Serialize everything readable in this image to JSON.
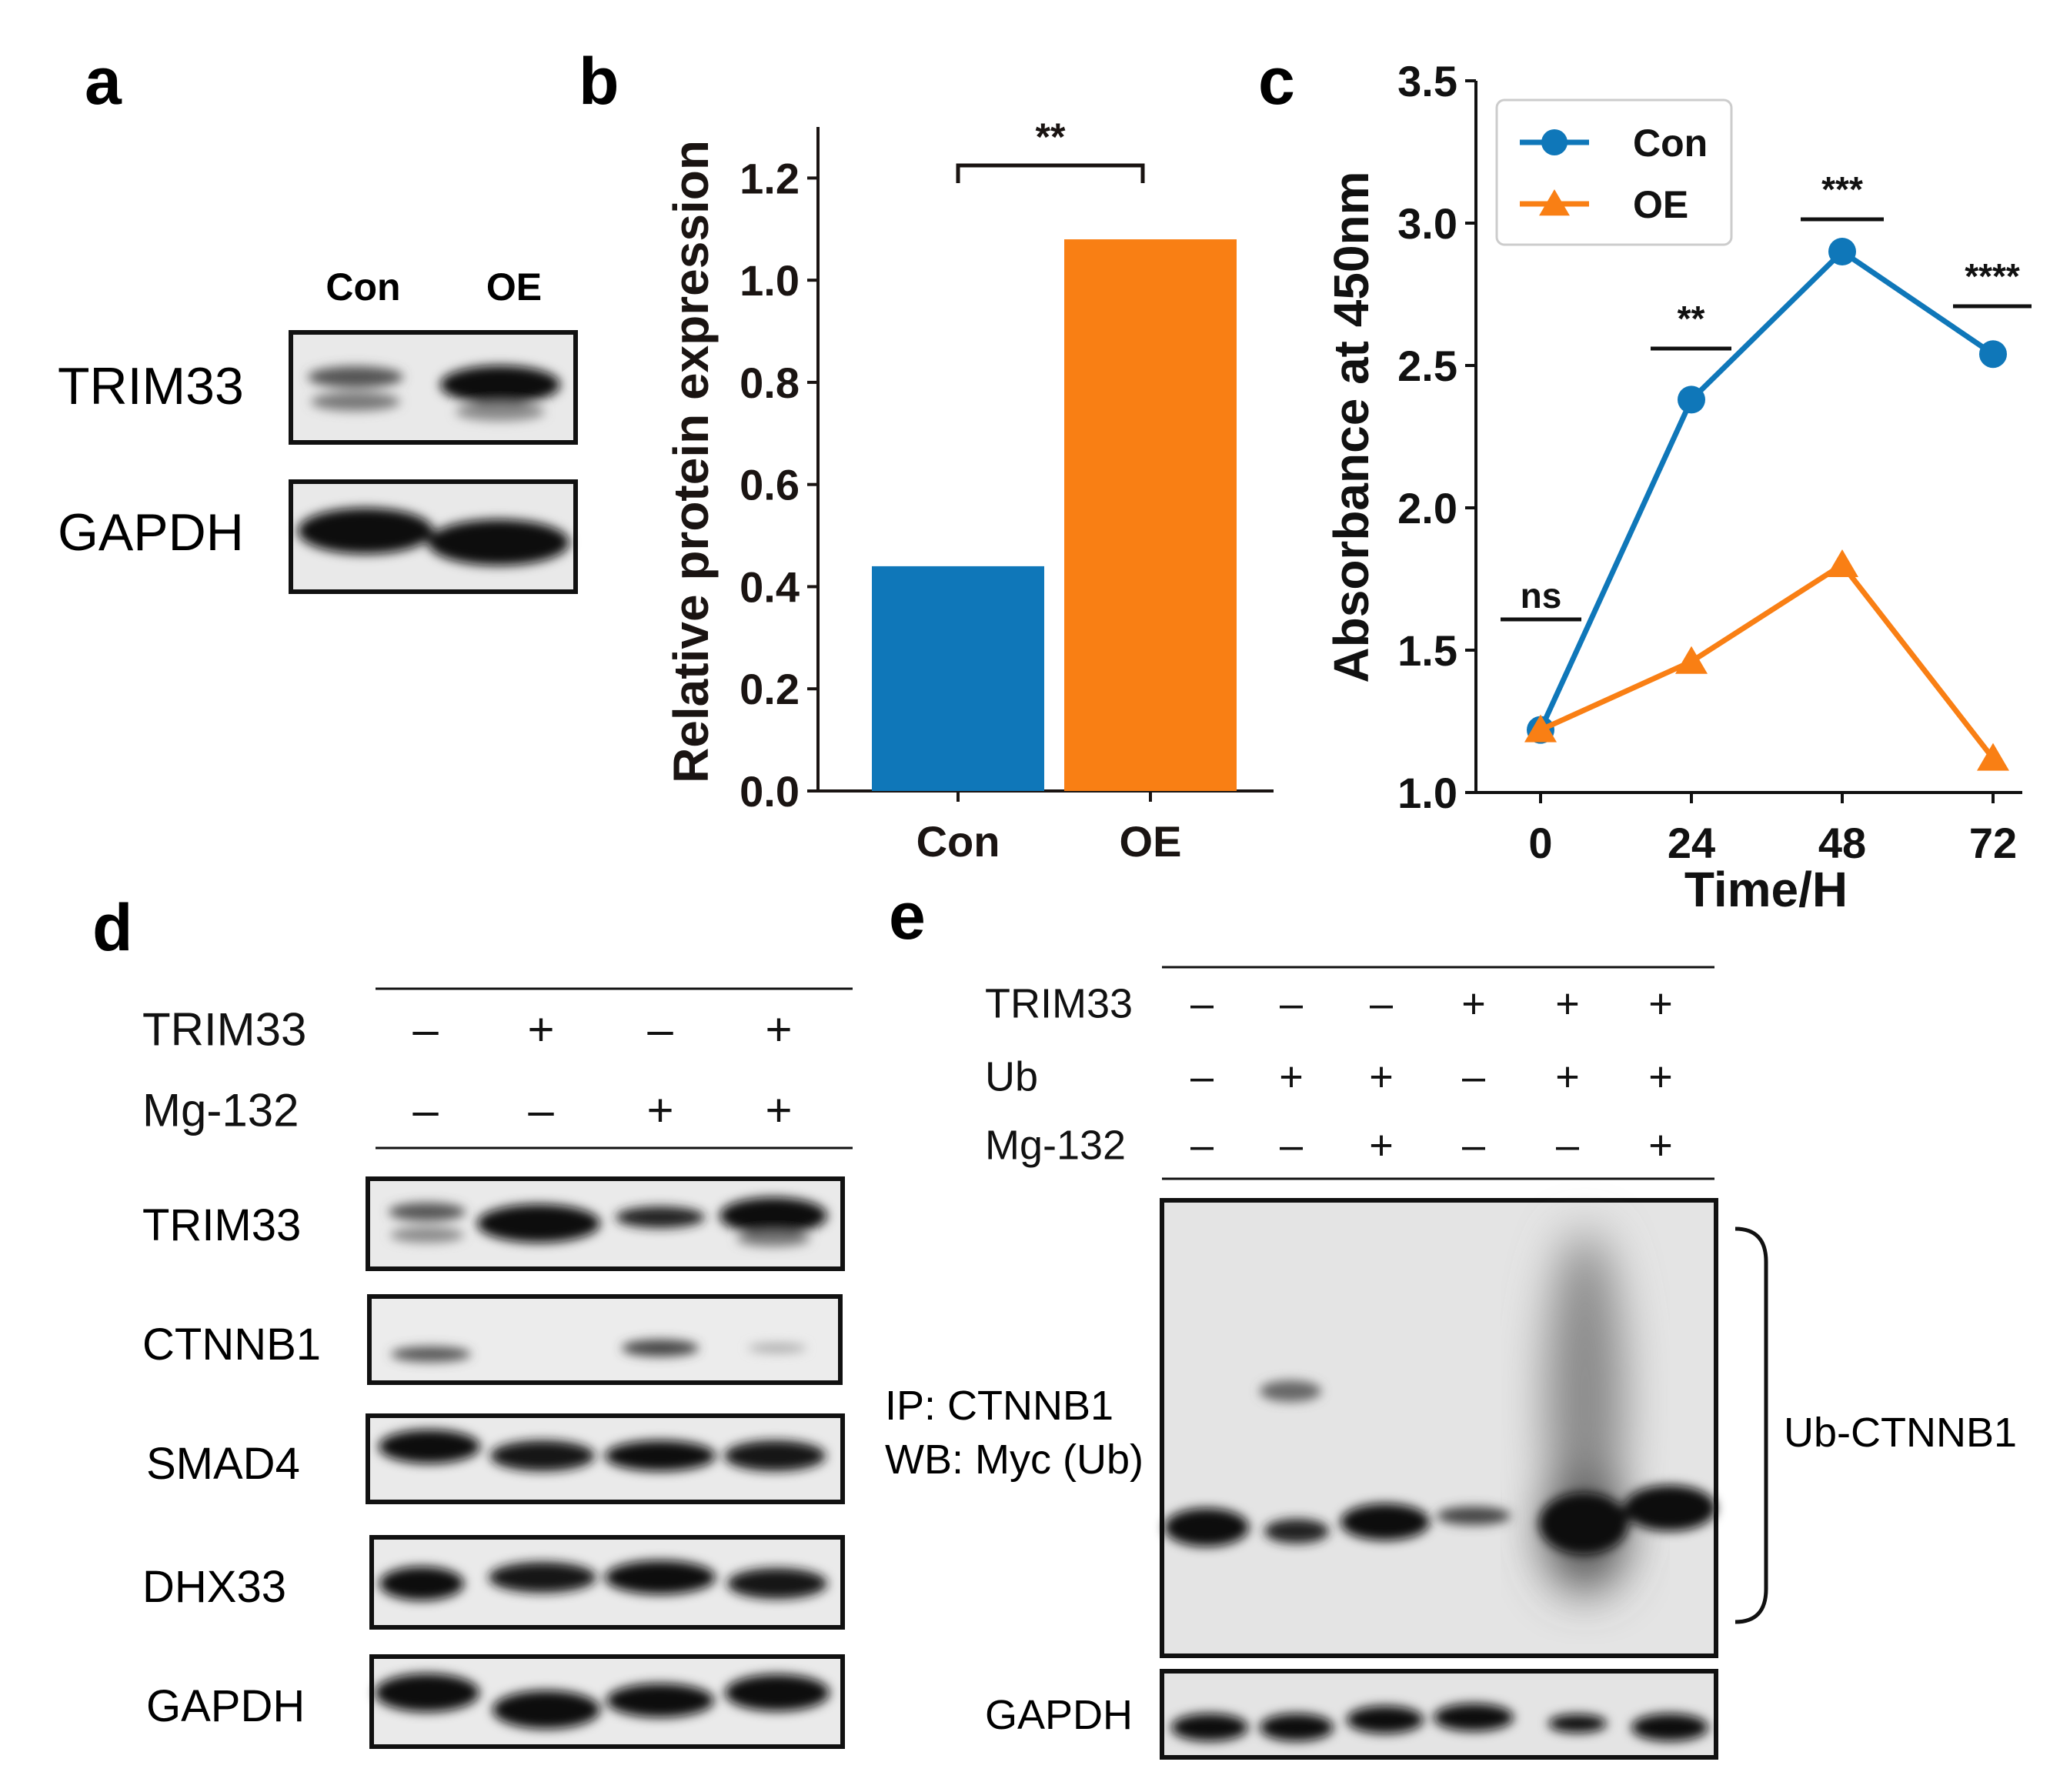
{
  "panel_letters": {
    "a": "a",
    "b": "b",
    "c": "c",
    "d": "d",
    "e": "e"
  },
  "panel_a": {
    "lanes": [
      "Con",
      "OE"
    ],
    "rows": [
      "TRIM33",
      "GAPDH"
    ]
  },
  "panel_d": {
    "conditions": [
      {
        "label": "TRIM33",
        "signs": [
          "–",
          "+",
          "–",
          "+"
        ]
      },
      {
        "label": "Mg-132",
        "signs": [
          "–",
          "–",
          "+",
          "+"
        ]
      }
    ],
    "blots": [
      "TRIM33",
      "CTNNB1",
      "SMAD4",
      "DHX33",
      "GAPDH"
    ]
  },
  "panel_e": {
    "conditions": [
      {
        "label": "TRIM33",
        "signs": [
          "–",
          "–",
          "–",
          "+",
          "+",
          "+"
        ]
      },
      {
        "label": "Ub",
        "signs": [
          "–",
          "+",
          "+",
          "–",
          "+",
          "+"
        ]
      },
      {
        "label": "Mg-132",
        "signs": [
          "–",
          "–",
          "+",
          "–",
          "–",
          "+"
        ]
      }
    ],
    "ip_label": "IP: CTNNB1",
    "wb_label": "WB: Myc (Ub)",
    "bracket_label": "Ub-CTNNB1",
    "loading_label": "GAPDH"
  },
  "chart_data": [
    {
      "type": "bar",
      "panel": "b",
      "categories": [
        "Con",
        "OE"
      ],
      "values": [
        0.44,
        1.08
      ],
      "colors": [
        "#0f77b9",
        "#f97f14"
      ],
      "ylabel": "Relative protein expression",
      "xlabel": "",
      "ylim": [
        0,
        1.3
      ],
      "yticks": [
        "0.0",
        "0.2",
        "0.4",
        "0.6",
        "0.8",
        "1.0",
        "1.2"
      ],
      "significance": "**"
    },
    {
      "type": "line",
      "panel": "c",
      "x": [
        0,
        24,
        48,
        72
      ],
      "xticks": [
        "0",
        "24",
        "48",
        "72"
      ],
      "xlabel": "Time/H",
      "ylabel": "Absorbance at 450nm",
      "ylim": [
        1.0,
        3.5
      ],
      "yticks": [
        "1.0",
        "1.5",
        "2.0",
        "2.5",
        "3.0",
        "3.5"
      ],
      "series": [
        {
          "name": "Con",
          "values": [
            1.22,
            2.38,
            2.9,
            2.54
          ],
          "color": "#0f77b9",
          "marker": "circle"
        },
        {
          "name": "OE",
          "values": [
            1.22,
            1.46,
            1.8,
            1.12
          ],
          "color": "#f97f14",
          "marker": "triangle"
        }
      ],
      "significance": [
        "ns",
        "**",
        "***",
        "****"
      ],
      "legend": "top-left"
    }
  ]
}
